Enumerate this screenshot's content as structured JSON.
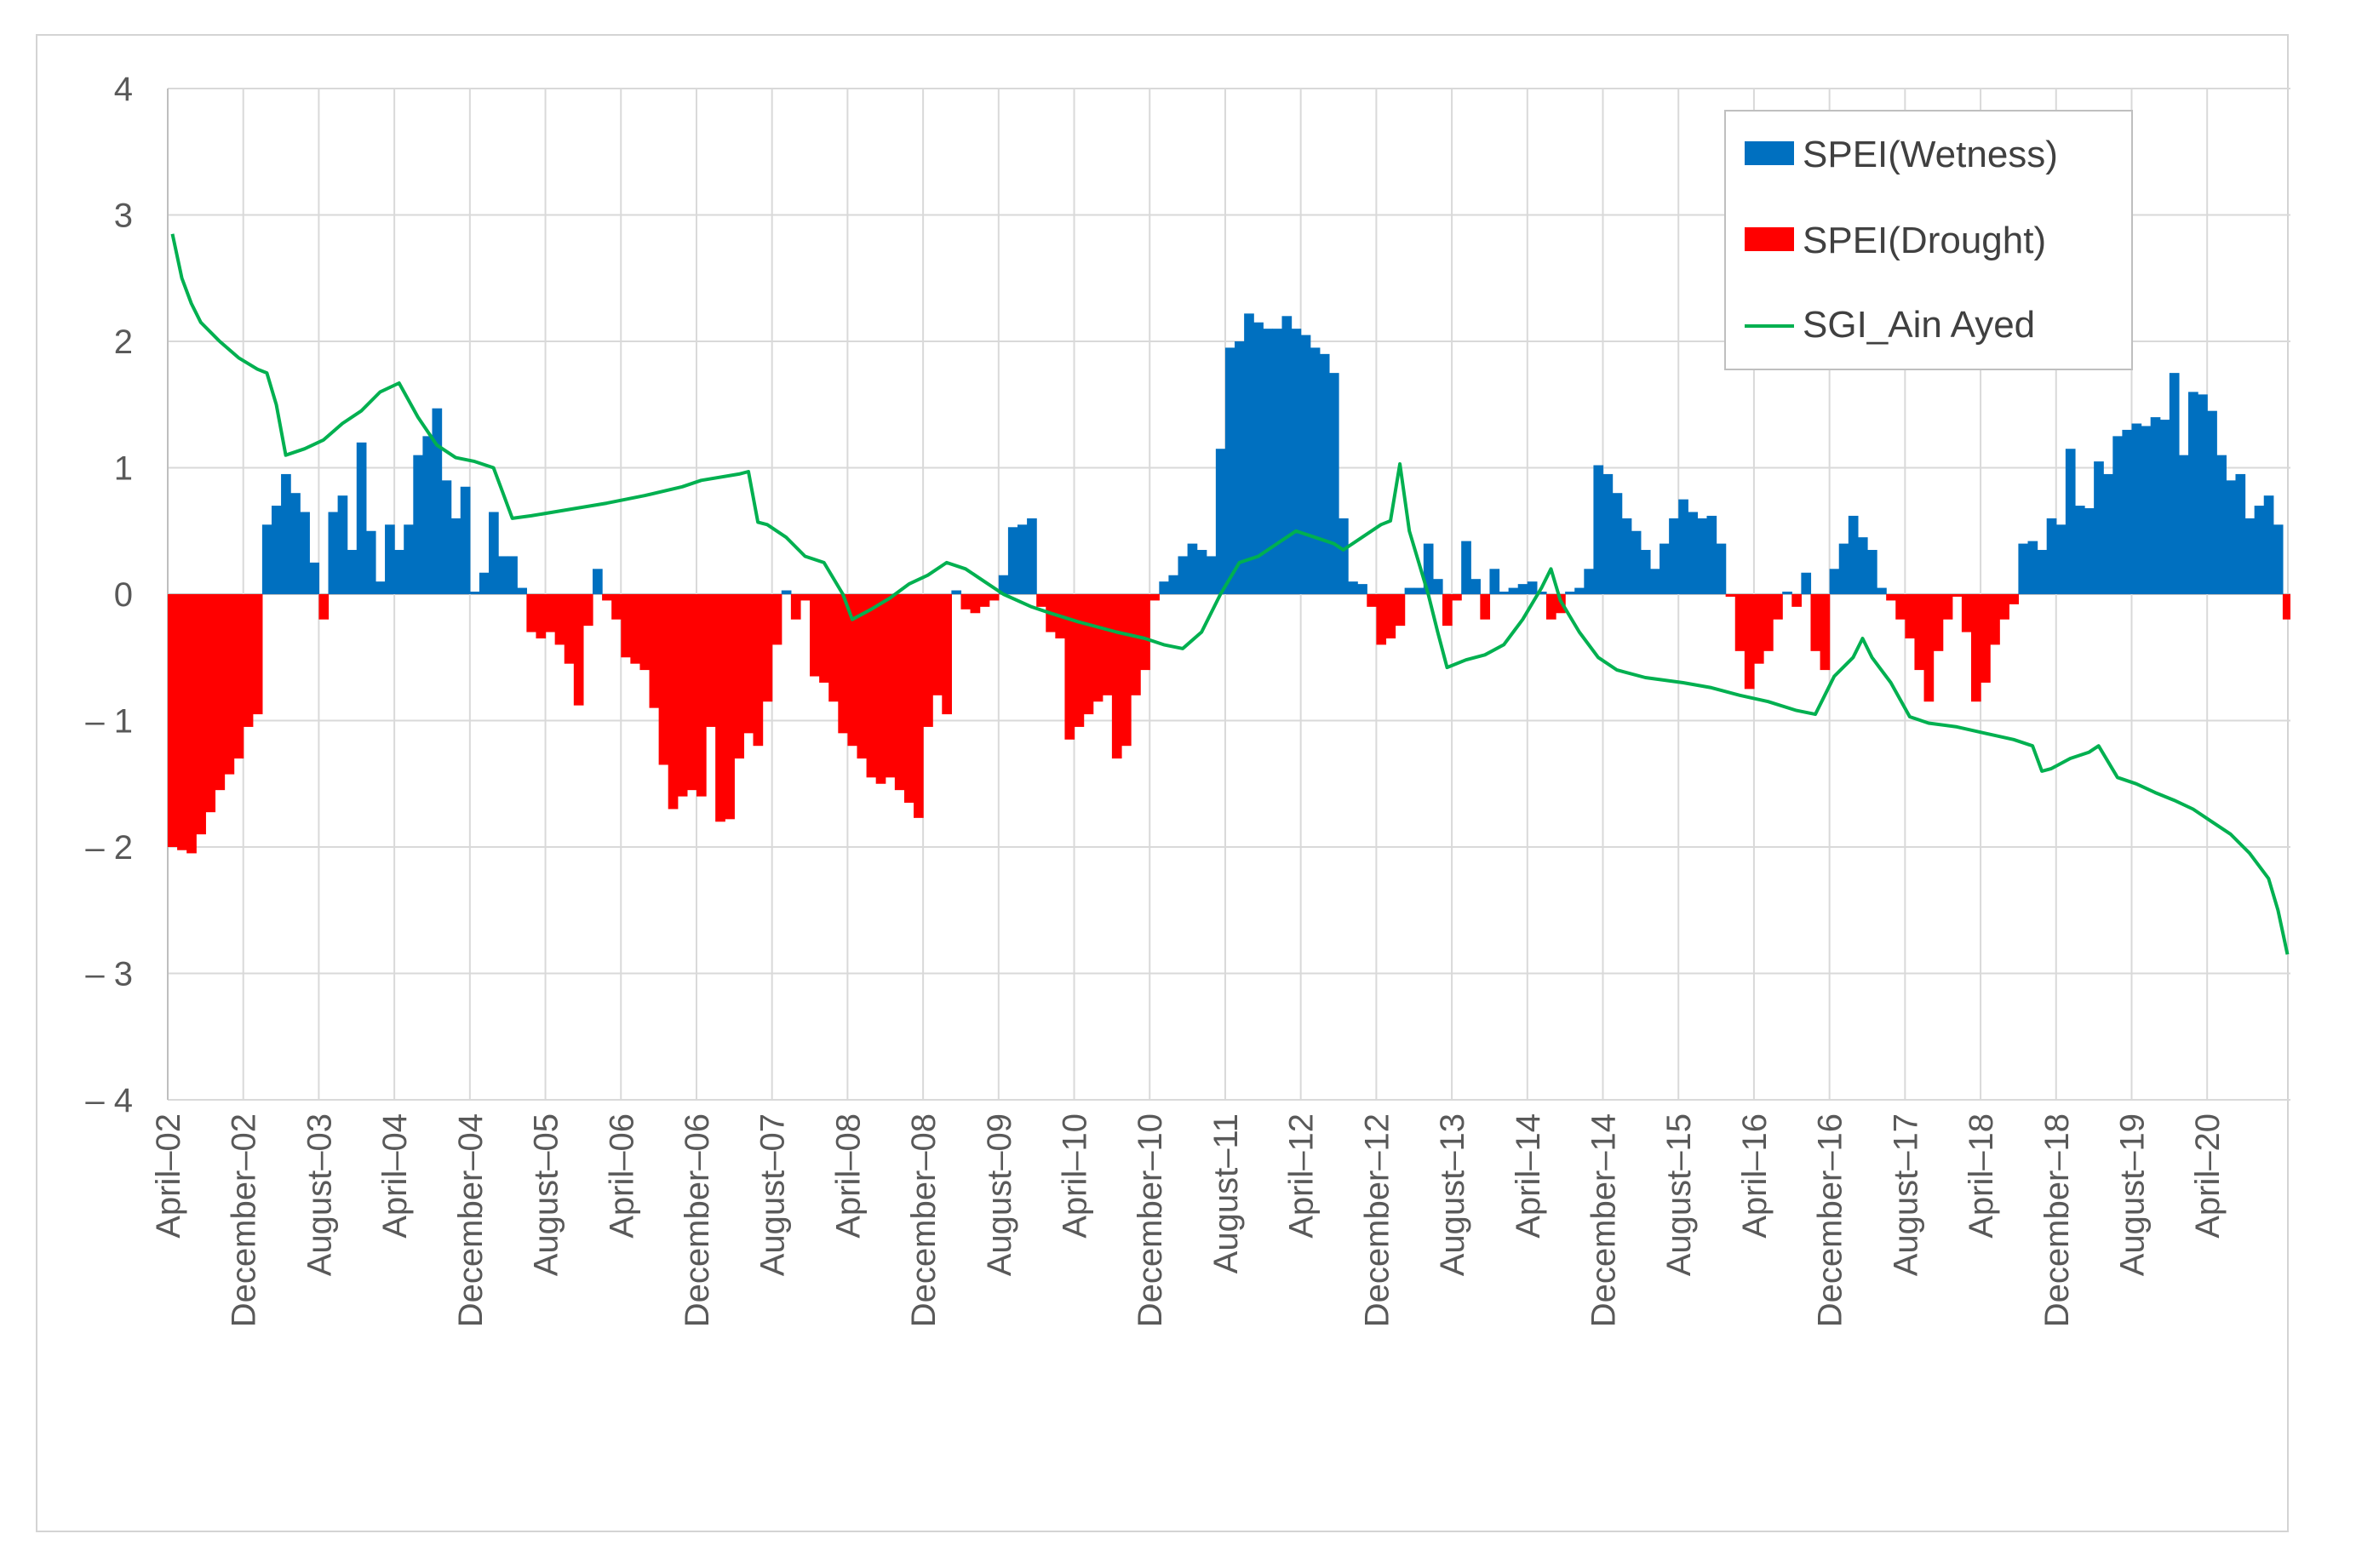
{
  "chart_data": {
    "type": "bar+line",
    "title": "",
    "xlabel": "",
    "ylabel": "",
    "ylim": [
      -4,
      4
    ],
    "yticks": [
      -4,
      -3,
      -2,
      -1,
      0,
      1,
      2,
      3,
      4
    ],
    "ytick_labels": [
      "– 4",
      "– 3",
      "– 2",
      "– 1",
      "0",
      "1",
      "2",
      "3",
      "4"
    ],
    "start_month": "2002-04",
    "n_months": 224,
    "x_tick_labels": [
      "April–02",
      "December–02",
      "August–03",
      "April–04",
      "December–04",
      "August–05",
      "April–06",
      "December–06",
      "August–07",
      "April–08",
      "December–08",
      "August–09",
      "April–10",
      "December–10",
      "August–11",
      "April–12",
      "December–12",
      "August–13",
      "April–14",
      "December–14",
      "August–15",
      "April–16",
      "December–16",
      "August–17",
      "April–18",
      "December–18",
      "August–19",
      "April–20"
    ],
    "legend_position": "top-right",
    "grid": true,
    "colors": {
      "wetness": "#0070c0",
      "drought": "#ff0000",
      "sgi": "#00b050",
      "grid": "#d9d9d9",
      "axis": "#bfbfbf"
    },
    "series": [
      {
        "name": "SPEI(Wetness)",
        "type": "bar",
        "color": "#0070c0"
      },
      {
        "name": "SPEI(Drought)",
        "type": "bar",
        "color": "#ff0000"
      },
      {
        "name": "SGI_Ain Ayed",
        "type": "line",
        "color": "#00b050"
      }
    ],
    "spei_anchors": [
      [
        0,
        -2.0
      ],
      [
        2,
        -2.05
      ],
      [
        3,
        -1.9
      ],
      [
        5,
        -1.55
      ],
      [
        7,
        -1.3
      ],
      [
        8,
        -1.05
      ],
      [
        9,
        -0.95
      ],
      [
        10,
        0.55
      ],
      [
        11,
        0.7
      ],
      [
        12,
        0.95
      ],
      [
        13,
        0.8
      ],
      [
        14,
        0.65
      ],
      [
        15,
        0.25
      ],
      [
        16,
        -0.2
      ],
      [
        17,
        0.65
      ],
      [
        18,
        0.78
      ],
      [
        19,
        0.35
      ],
      [
        20,
        1.2
      ],
      [
        21,
        0.5
      ],
      [
        22,
        0.1
      ],
      [
        23,
        0.55
      ],
      [
        24,
        0.35
      ],
      [
        25,
        0.55
      ],
      [
        26,
        1.1
      ],
      [
        27,
        1.25
      ],
      [
        28,
        1.47
      ],
      [
        29,
        0.9
      ],
      [
        30,
        0.6
      ],
      [
        31,
        0.85
      ],
      [
        32,
        0.02
      ],
      [
        33,
        0.17
      ],
      [
        34,
        0.65
      ],
      [
        35,
        0.3
      ],
      [
        36,
        0.3
      ],
      [
        37,
        0.05
      ],
      [
        38,
        -0.3
      ],
      [
        39,
        -0.35
      ],
      [
        40,
        -0.3
      ],
      [
        41,
        -0.4
      ],
      [
        42,
        -0.55
      ],
      [
        43,
        -0.88
      ],
      [
        44,
        -0.25
      ],
      [
        45,
        0.2
      ],
      [
        46,
        -0.05
      ],
      [
        47,
        -0.2
      ],
      [
        48,
        -0.5
      ],
      [
        50,
        -0.6
      ],
      [
        51,
        -0.9
      ],
      [
        52,
        -1.35
      ],
      [
        53,
        -1.7
      ],
      [
        54,
        -1.6
      ],
      [
        55,
        -1.55
      ],
      [
        56,
        -1.6
      ],
      [
        57,
        -1.05
      ],
      [
        58,
        -1.8
      ],
      [
        59,
        -1.78
      ],
      [
        60,
        -1.3
      ],
      [
        61,
        -1.1
      ],
      [
        62,
        -1.2
      ],
      [
        63,
        -0.85
      ],
      [
        64,
        -0.4
      ],
      [
        65,
        0.03
      ],
      [
        66,
        -0.2
      ],
      [
        67,
        -0.05
      ],
      [
        68,
        -0.65
      ],
      [
        69,
        -0.7
      ],
      [
        70,
        -0.85
      ],
      [
        71,
        -1.1
      ],
      [
        72,
        -1.2
      ],
      [
        73,
        -1.3
      ],
      [
        74,
        -1.45
      ],
      [
        75,
        -1.5
      ],
      [
        76,
        -1.45
      ],
      [
        77,
        -1.55
      ],
      [
        78,
        -1.65
      ],
      [
        79,
        -1.77
      ],
      [
        80,
        -1.05
      ],
      [
        81,
        -0.8
      ],
      [
        82,
        -0.95
      ],
      [
        83,
        0.03
      ],
      [
        84,
        -0.12
      ],
      [
        85,
        -0.15
      ],
      [
        86,
        -0.1
      ],
      [
        87,
        -0.05
      ],
      [
        88,
        0.15
      ],
      [
        89,
        0.53
      ],
      [
        90,
        0.55
      ],
      [
        91,
        0.6
      ],
      [
        92,
        -0.1
      ],
      [
        93,
        -0.3
      ],
      [
        94,
        -0.35
      ],
      [
        95,
        -1.15
      ],
      [
        96,
        -1.05
      ],
      [
        97,
        -0.95
      ],
      [
        98,
        -0.85
      ],
      [
        99,
        -0.8
      ],
      [
        100,
        -1.3
      ],
      [
        101,
        -1.2
      ],
      [
        102,
        -0.8
      ],
      [
        103,
        -0.6
      ],
      [
        104,
        -0.05
      ],
      [
        105,
        0.1
      ],
      [
        106,
        0.15
      ],
      [
        107,
        0.3
      ],
      [
        108,
        0.4
      ],
      [
        109,
        0.35
      ],
      [
        110,
        0.3
      ],
      [
        111,
        1.15
      ],
      [
        112,
        1.95
      ],
      [
        113,
        2.0
      ],
      [
        114,
        2.22
      ],
      [
        115,
        2.15
      ],
      [
        116,
        2.1
      ],
      [
        117,
        2.1
      ],
      [
        118,
        2.2
      ],
      [
        119,
        2.1
      ],
      [
        120,
        2.05
      ],
      [
        121,
        1.95
      ],
      [
        122,
        1.9
      ],
      [
        123,
        1.75
      ],
      [
        124,
        0.6
      ],
      [
        125,
        0.1
      ],
      [
        126,
        0.08
      ],
      [
        127,
        -0.1
      ],
      [
        128,
        -0.4
      ],
      [
        129,
        -0.35
      ],
      [
        130,
        -0.25
      ],
      [
        131,
        0.05
      ],
      [
        132,
        0.05
      ],
      [
        133,
        0.4
      ],
      [
        134,
        0.12
      ],
      [
        135,
        -0.25
      ],
      [
        136,
        -0.05
      ],
      [
        137,
        0.42
      ],
      [
        138,
        0.12
      ],
      [
        139,
        -0.2
      ],
      [
        140,
        0.2
      ],
      [
        141,
        0.02
      ],
      [
        142,
        0.05
      ],
      [
        143,
        0.08
      ],
      [
        144,
        0.1
      ],
      [
        145,
        0.02
      ],
      [
        146,
        -0.2
      ],
      [
        147,
        -0.15
      ],
      [
        148,
        0.02
      ],
      [
        149,
        0.05
      ],
      [
        150,
        0.2
      ],
      [
        151,
        1.02
      ],
      [
        152,
        0.95
      ],
      [
        153,
        0.8
      ],
      [
        154,
        0.6
      ],
      [
        155,
        0.5
      ],
      [
        156,
        0.35
      ],
      [
        157,
        0.2
      ],
      [
        158,
        0.4
      ],
      [
        159,
        0.6
      ],
      [
        160,
        0.75
      ],
      [
        161,
        0.65
      ],
      [
        162,
        0.6
      ],
      [
        163,
        0.62
      ],
      [
        164,
        0.4
      ],
      [
        165,
        -0.02
      ],
      [
        166,
        -0.45
      ],
      [
        167,
        -0.75
      ],
      [
        168,
        -0.55
      ],
      [
        169,
        -0.45
      ],
      [
        170,
        -0.2
      ],
      [
        171,
        0.02
      ],
      [
        172,
        -0.1
      ],
      [
        173,
        0.17
      ],
      [
        174,
        -0.45
      ],
      [
        175,
        -0.6
      ],
      [
        176,
        0.2
      ],
      [
        177,
        0.4
      ],
      [
        178,
        0.62
      ],
      [
        179,
        0.45
      ],
      [
        180,
        0.35
      ],
      [
        181,
        0.05
      ],
      [
        182,
        -0.05
      ],
      [
        183,
        -0.2
      ],
      [
        184,
        -0.35
      ],
      [
        185,
        -0.6
      ],
      [
        186,
        -0.85
      ],
      [
        187,
        -0.45
      ],
      [
        188,
        -0.2
      ],
      [
        189,
        -0.02
      ],
      [
        190,
        -0.3
      ],
      [
        191,
        -0.85
      ],
      [
        192,
        -0.7
      ],
      [
        193,
        -0.4
      ],
      [
        194,
        -0.2
      ],
      [
        195,
        -0.08
      ],
      [
        196,
        0.4
      ],
      [
        197,
        0.42
      ],
      [
        198,
        0.35
      ],
      [
        199,
        0.6
      ],
      [
        200,
        0.55
      ],
      [
        201,
        1.15
      ],
      [
        202,
        0.7
      ],
      [
        203,
        0.68
      ],
      [
        204,
        1.05
      ],
      [
        205,
        0.95
      ],
      [
        206,
        1.25
      ],
      [
        207,
        1.3
      ],
      [
        208,
        1.35
      ],
      [
        209,
        1.33
      ],
      [
        210,
        1.4
      ],
      [
        211,
        1.38
      ],
      [
        212,
        1.75
      ],
      [
        213,
        1.1
      ],
      [
        214,
        1.6
      ],
      [
        215,
        1.58
      ],
      [
        216,
        1.45
      ],
      [
        217,
        1.1
      ],
      [
        218,
        0.9
      ],
      [
        219,
        0.95
      ],
      [
        220,
        0.6
      ],
      [
        221,
        0.7
      ],
      [
        222,
        0.78
      ],
      [
        223,
        0.55
      ]
    ],
    "spei_last": {
      "month": 224,
      "value": -0.2
    },
    "sgi_anchors": [
      [
        0,
        2.85
      ],
      [
        1,
        2.5
      ],
      [
        2,
        2.3
      ],
      [
        3,
        2.15
      ],
      [
        5,
        2.0
      ],
      [
        7,
        1.87
      ],
      [
        9,
        1.78
      ],
      [
        10,
        1.75
      ],
      [
        11,
        1.5
      ],
      [
        12,
        1.1
      ],
      [
        14,
        1.15
      ],
      [
        16,
        1.22
      ],
      [
        18,
        1.35
      ],
      [
        20,
        1.45
      ],
      [
        22,
        1.6
      ],
      [
        24,
        1.67
      ],
      [
        26,
        1.4
      ],
      [
        28,
        1.18
      ],
      [
        30,
        1.08
      ],
      [
        32,
        1.05
      ],
      [
        34,
        1.0
      ],
      [
        35,
        0.8
      ],
      [
        36,
        0.6
      ],
      [
        38,
        0.62
      ],
      [
        42,
        0.67
      ],
      [
        46,
        0.72
      ],
      [
        50,
        0.78
      ],
      [
        54,
        0.85
      ],
      [
        56,
        0.9
      ],
      [
        60,
        0.95
      ],
      [
        61,
        0.97
      ],
      [
        62,
        0.57
      ],
      [
        63,
        0.55
      ],
      [
        65,
        0.45
      ],
      [
        67,
        0.3
      ],
      [
        69,
        0.25
      ],
      [
        71,
        0.0
      ],
      [
        72,
        -0.2
      ],
      [
        74,
        -0.12
      ],
      [
        76,
        -0.03
      ],
      [
        78,
        0.08
      ],
      [
        80,
        0.15
      ],
      [
        82,
        0.25
      ],
      [
        84,
        0.2
      ],
      [
        86,
        0.1
      ],
      [
        88,
        0.0
      ],
      [
        91,
        -0.1
      ],
      [
        93,
        -0.15
      ],
      [
        96,
        -0.22
      ],
      [
        100,
        -0.3
      ],
      [
        103,
        -0.35
      ],
      [
        105,
        -0.4
      ],
      [
        107,
        -0.43
      ],
      [
        109,
        -0.3
      ],
      [
        111,
        0.0
      ],
      [
        113,
        0.25
      ],
      [
        115,
        0.3
      ],
      [
        117,
        0.4
      ],
      [
        119,
        0.5
      ],
      [
        121,
        0.45
      ],
      [
        123,
        0.4
      ],
      [
        124,
        0.35
      ],
      [
        126,
        0.45
      ],
      [
        128,
        0.55
      ],
      [
        129,
        0.58
      ],
      [
        130,
        1.03
      ],
      [
        131,
        0.5
      ],
      [
        133,
        0.0
      ],
      [
        134,
        -0.3
      ],
      [
        135,
        -0.58
      ],
      [
        137,
        -0.52
      ],
      [
        139,
        -0.48
      ],
      [
        141,
        -0.4
      ],
      [
        143,
        -0.2
      ],
      [
        145,
        0.05
      ],
      [
        146,
        0.2
      ],
      [
        147,
        -0.05
      ],
      [
        149,
        -0.3
      ],
      [
        151,
        -0.5
      ],
      [
        153,
        -0.6
      ],
      [
        156,
        -0.66
      ],
      [
        160,
        -0.7
      ],
      [
        163,
        -0.74
      ],
      [
        166,
        -0.8
      ],
      [
        169,
        -0.85
      ],
      [
        172,
        -0.92
      ],
      [
        174,
        -0.95
      ],
      [
        175,
        -0.8
      ],
      [
        176,
        -0.65
      ],
      [
        178,
        -0.5
      ],
      [
        179,
        -0.35
      ],
      [
        180,
        -0.5
      ],
      [
        182,
        -0.7
      ],
      [
        184,
        -0.97
      ],
      [
        186,
        -1.02
      ],
      [
        189,
        -1.05
      ],
      [
        192,
        -1.1
      ],
      [
        195,
        -1.15
      ],
      [
        197,
        -1.2
      ],
      [
        198,
        -1.4
      ],
      [
        199,
        -1.38
      ],
      [
        201,
        -1.3
      ],
      [
        203,
        -1.25
      ],
      [
        204,
        -1.2
      ],
      [
        206,
        -1.45
      ],
      [
        208,
        -1.5
      ],
      [
        210,
        -1.57
      ],
      [
        212,
        -1.63
      ],
      [
        214,
        -1.7
      ],
      [
        216,
        -1.8
      ],
      [
        218,
        -1.9
      ],
      [
        220,
        -2.05
      ],
      [
        222,
        -2.25
      ],
      [
        223,
        -2.5
      ],
      [
        224,
        -2.85
      ]
    ]
  }
}
